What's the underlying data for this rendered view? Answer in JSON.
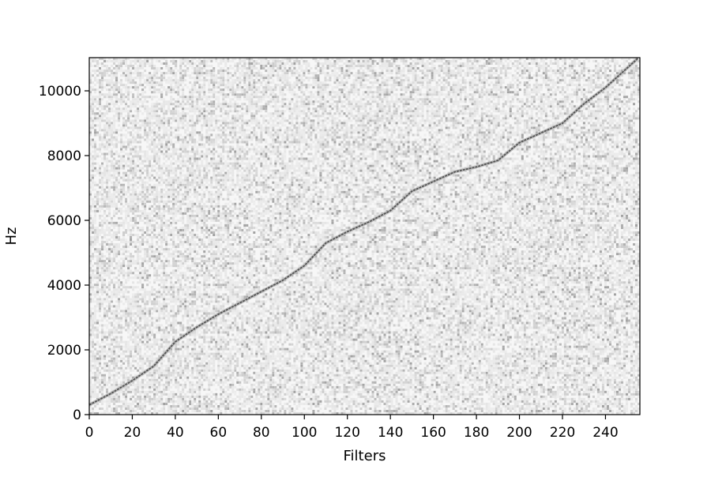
{
  "chart_data": {
    "type": "heatmap",
    "title": "",
    "xlabel": "Filters",
    "ylabel": "Hz",
    "xlim": [
      0,
      256
    ],
    "ylim": [
      0,
      11025
    ],
    "xticks": [
      0,
      20,
      40,
      60,
      80,
      100,
      120,
      140,
      160,
      180,
      200,
      220,
      240
    ],
    "yticks": [
      0,
      2000,
      4000,
      6000,
      8000,
      10000
    ],
    "xtick_labels": [
      "0",
      "20",
      "40",
      "60",
      "80",
      "100",
      "120",
      "140",
      "160",
      "180",
      "200",
      "220",
      "240"
    ],
    "ytick_labels": [
      "0",
      "2000",
      "4000",
      "6000",
      "8000",
      "10000"
    ],
    "colormap": "grayscale",
    "grid": false,
    "legend": "none",
    "background_noise": "light gray speckle",
    "peak_ridge": {
      "description": "dark diagonal ridge of peak response frequency per filter",
      "x": [
        0,
        10,
        20,
        30,
        40,
        50,
        60,
        70,
        80,
        90,
        100,
        110,
        120,
        130,
        140,
        150,
        160,
        170,
        180,
        190,
        200,
        210,
        220,
        230,
        240,
        250,
        255
      ],
      "y": [
        300,
        650,
        1050,
        1500,
        2250,
        2700,
        3100,
        3450,
        3800,
        4150,
        4600,
        5300,
        5650,
        5950,
        6300,
        6900,
        7200,
        7500,
        7650,
        7850,
        8400,
        8700,
        9000,
        9600,
        10100,
        10700,
        11000
      ]
    },
    "colors": {
      "ridge": "#555555",
      "axes": "#000000"
    }
  }
}
